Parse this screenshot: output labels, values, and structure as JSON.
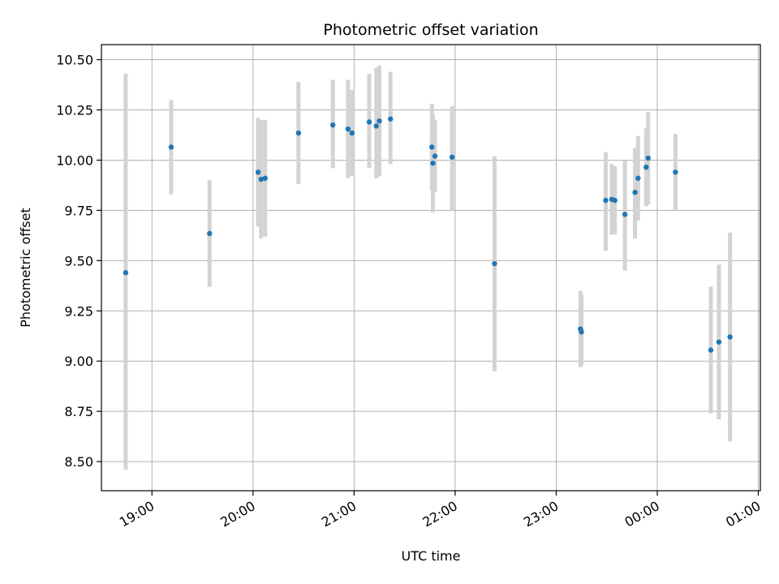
{
  "chart_data": {
    "type": "scatter",
    "title": "Photometric offset variation",
    "xlabel": "UTC time",
    "ylabel": "Photometric offset",
    "grid": true,
    "colors": {
      "point": "#1f77b4",
      "errorbar": "#d3d3d3",
      "grid": "#b0b0b0",
      "axis": "#000000"
    },
    "xlim_hours": [
      18.5,
      25.02
    ],
    "ylim": [
      8.355,
      10.575
    ],
    "x_ticks": [
      {
        "value": 19,
        "label": "19:00"
      },
      {
        "value": 20,
        "label": "20:00"
      },
      {
        "value": 21,
        "label": "21:00"
      },
      {
        "value": 22,
        "label": "22:00"
      },
      {
        "value": 23,
        "label": "23:00"
      },
      {
        "value": 24,
        "label": "00:00"
      },
      {
        "value": 25,
        "label": "01:00"
      }
    ],
    "y_ticks": [
      {
        "value": 8.5,
        "label": "8.50"
      },
      {
        "value": 8.75,
        "label": "8.75"
      },
      {
        "value": 9.0,
        "label": "9.00"
      },
      {
        "value": 9.25,
        "label": "9.25"
      },
      {
        "value": 9.5,
        "label": "9.50"
      },
      {
        "value": 9.75,
        "label": "9.75"
      },
      {
        "value": 10.0,
        "label": "10.00"
      },
      {
        "value": 10.25,
        "label": "10.25"
      },
      {
        "value": 10.5,
        "label": "10.50"
      }
    ],
    "points": [
      {
        "x": 18.74,
        "y": 9.44,
        "lo": 8.46,
        "hi": 10.43
      },
      {
        "x": 19.19,
        "y": 10.065,
        "lo": 9.83,
        "hi": 10.3
      },
      {
        "x": 19.57,
        "y": 9.635,
        "lo": 9.37,
        "hi": 9.9
      },
      {
        "x": 20.05,
        "y": 9.94,
        "lo": 9.67,
        "hi": 10.21
      },
      {
        "x": 20.08,
        "y": 9.905,
        "lo": 9.61,
        "hi": 10.2
      },
      {
        "x": 20.12,
        "y": 9.91,
        "lo": 9.62,
        "hi": 10.2
      },
      {
        "x": 20.45,
        "y": 10.135,
        "lo": 9.88,
        "hi": 10.39
      },
      {
        "x": 20.79,
        "y": 10.175,
        "lo": 9.96,
        "hi": 10.4
      },
      {
        "x": 20.94,
        "y": 10.155,
        "lo": 9.91,
        "hi": 10.4
      },
      {
        "x": 20.98,
        "y": 10.135,
        "lo": 9.92,
        "hi": 10.35
      },
      {
        "x": 21.15,
        "y": 10.19,
        "lo": 9.96,
        "hi": 10.43
      },
      {
        "x": 21.22,
        "y": 10.17,
        "lo": 9.91,
        "hi": 10.46
      },
      {
        "x": 21.25,
        "y": 10.195,
        "lo": 9.92,
        "hi": 10.47
      },
      {
        "x": 21.36,
        "y": 10.205,
        "lo": 9.98,
        "hi": 10.44
      },
      {
        "x": 21.77,
        "y": 10.065,
        "lo": 9.85,
        "hi": 10.28
      },
      {
        "x": 21.78,
        "y": 9.985,
        "lo": 9.74,
        "hi": 10.23
      },
      {
        "x": 21.8,
        "y": 10.02,
        "lo": 9.84,
        "hi": 10.2
      },
      {
        "x": 21.97,
        "y": 10.015,
        "lo": 9.75,
        "hi": 10.27
      },
      {
        "x": 22.39,
        "y": 9.485,
        "lo": 8.95,
        "hi": 10.02
      },
      {
        "x": 23.24,
        "y": 9.16,
        "lo": 8.97,
        "hi": 9.35
      },
      {
        "x": 23.25,
        "y": 9.145,
        "lo": 8.98,
        "hi": 9.33
      },
      {
        "x": 23.49,
        "y": 9.8,
        "lo": 9.55,
        "hi": 10.04
      },
      {
        "x": 23.55,
        "y": 9.805,
        "lo": 9.63,
        "hi": 9.98
      },
      {
        "x": 23.58,
        "y": 9.8,
        "lo": 9.63,
        "hi": 9.97
      },
      {
        "x": 23.68,
        "y": 9.73,
        "lo": 9.45,
        "hi": 10.0
      },
      {
        "x": 23.78,
        "y": 9.84,
        "lo": 9.61,
        "hi": 10.06
      },
      {
        "x": 23.81,
        "y": 9.91,
        "lo": 9.7,
        "hi": 10.12
      },
      {
        "x": 23.89,
        "y": 9.965,
        "lo": 9.77,
        "hi": 10.16
      },
      {
        "x": 23.91,
        "y": 10.01,
        "lo": 9.78,
        "hi": 10.24
      },
      {
        "x": 24.18,
        "y": 9.94,
        "lo": 9.75,
        "hi": 10.13
      },
      {
        "x": 24.53,
        "y": 9.055,
        "lo": 8.74,
        "hi": 9.37
      },
      {
        "x": 24.61,
        "y": 9.095,
        "lo": 8.71,
        "hi": 9.48
      },
      {
        "x": 24.72,
        "y": 9.12,
        "lo": 8.6,
        "hi": 9.64
      }
    ]
  }
}
